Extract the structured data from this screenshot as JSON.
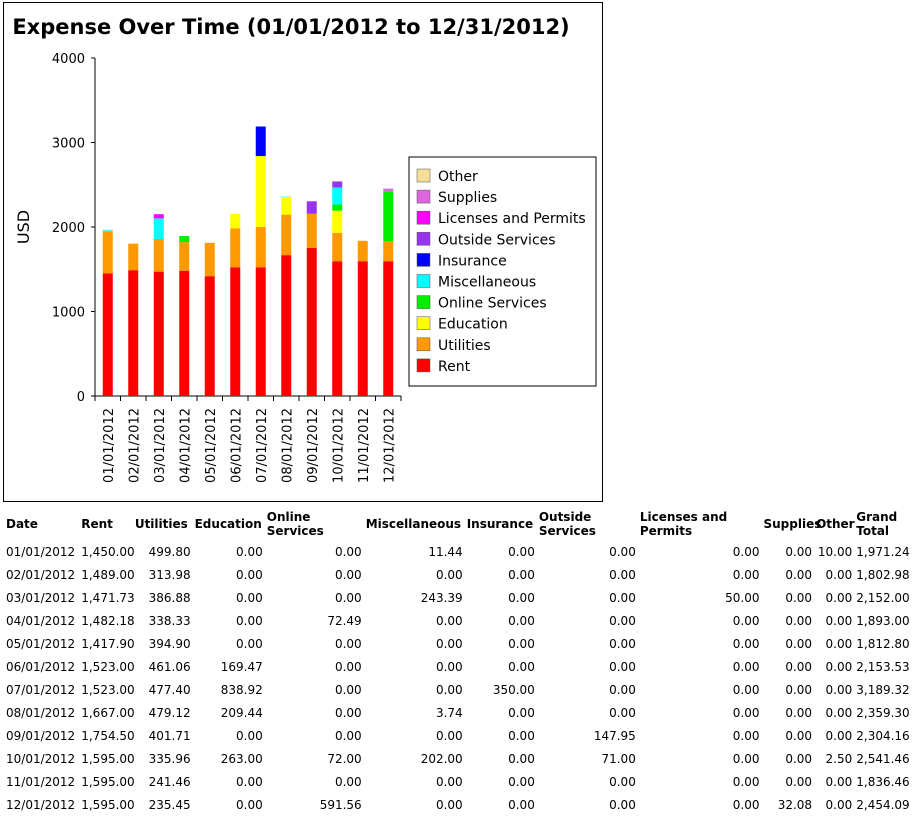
{
  "chart_data": {
    "type": "bar",
    "stacked": true,
    "title": "Expense Over Time (01/01/2012 to 12/31/2012)",
    "ylabel": "USD",
    "xlabel": "",
    "ylim": [
      0,
      4000
    ],
    "yticks": [
      0,
      1000,
      2000,
      3000,
      4000
    ],
    "legend_position": "right",
    "categories": [
      "01/01/2012",
      "02/01/2012",
      "03/01/2012",
      "04/01/2012",
      "05/01/2012",
      "06/01/2012",
      "07/01/2012",
      "08/01/2012",
      "09/01/2012",
      "10/01/2012",
      "11/01/2012",
      "12/01/2012"
    ],
    "series": [
      {
        "name": "Rent",
        "color": "#ff0000",
        "values": [
          1450.0,
          1489.0,
          1471.73,
          1482.18,
          1417.9,
          1523.0,
          1523.0,
          1667.0,
          1754.5,
          1595.0,
          1595.0,
          1595.0
        ]
      },
      {
        "name": "Utilities",
        "color": "#ff9900",
        "values": [
          499.8,
          313.98,
          386.88,
          338.33,
          394.9,
          461.06,
          477.4,
          479.12,
          401.71,
          335.96,
          241.46,
          235.45
        ]
      },
      {
        "name": "Education",
        "color": "#ffff00",
        "values": [
          0,
          0,
          0,
          0,
          0,
          169.47,
          838.92,
          209.44,
          0,
          263.0,
          0,
          0
        ]
      },
      {
        "name": "Online Services",
        "color": "#00ee00",
        "values": [
          0,
          0,
          0,
          72.49,
          0,
          0,
          0,
          0,
          0,
          72.0,
          0,
          591.56
        ]
      },
      {
        "name": "Miscellaneous",
        "color": "#00ffff",
        "values": [
          11.44,
          0,
          243.39,
          0,
          0,
          0,
          0,
          3.74,
          0,
          202.0,
          0,
          0
        ]
      },
      {
        "name": "Insurance",
        "color": "#0000ff",
        "values": [
          0,
          0,
          0,
          0,
          0,
          0,
          350.0,
          0,
          0,
          0,
          0,
          0
        ]
      },
      {
        "name": "Outside Services",
        "color": "#9933ee",
        "values": [
          0,
          0,
          0,
          0,
          0,
          0,
          0,
          0,
          147.95,
          71.0,
          0,
          0
        ]
      },
      {
        "name": "Licenses and Permits",
        "color": "#ff00ff",
        "values": [
          0,
          0,
          50.0,
          0,
          0,
          0,
          0,
          0,
          0,
          0,
          0,
          0
        ]
      },
      {
        "name": "Supplies",
        "color": "#dd66dd",
        "values": [
          0,
          0,
          0,
          0,
          0,
          0,
          0,
          0,
          0,
          0,
          0,
          32.08
        ]
      },
      {
        "name": "Other",
        "color": "#f5df95",
        "values": [
          10.0,
          0,
          0,
          0,
          0,
          0,
          0,
          0,
          0,
          2.5,
          0,
          0
        ]
      }
    ]
  },
  "table": {
    "headers": [
      "Date",
      "Rent",
      "Utilities",
      "Education",
      "Online Services",
      "Miscellaneous",
      "Insurance",
      "Outside Services",
      "Licenses and Permits",
      "Supplies",
      "Other",
      "Grand Total"
    ],
    "rows": [
      [
        "01/01/2012",
        "1,450.00",
        "499.80",
        "0.00",
        "0.00",
        "11.44",
        "0.00",
        "0.00",
        "0.00",
        "0.00",
        "10.00",
        "1,971.24"
      ],
      [
        "02/01/2012",
        "1,489.00",
        "313.98",
        "0.00",
        "0.00",
        "0.00",
        "0.00",
        "0.00",
        "0.00",
        "0.00",
        "0.00",
        "1,802.98"
      ],
      [
        "03/01/2012",
        "1,471.73",
        "386.88",
        "0.00",
        "0.00",
        "243.39",
        "0.00",
        "0.00",
        "50.00",
        "0.00",
        "0.00",
        "2,152.00"
      ],
      [
        "04/01/2012",
        "1,482.18",
        "338.33",
        "0.00",
        "72.49",
        "0.00",
        "0.00",
        "0.00",
        "0.00",
        "0.00",
        "0.00",
        "1,893.00"
      ],
      [
        "05/01/2012",
        "1,417.90",
        "394.90",
        "0.00",
        "0.00",
        "0.00",
        "0.00",
        "0.00",
        "0.00",
        "0.00",
        "0.00",
        "1,812.80"
      ],
      [
        "06/01/2012",
        "1,523.00",
        "461.06",
        "169.47",
        "0.00",
        "0.00",
        "0.00",
        "0.00",
        "0.00",
        "0.00",
        "0.00",
        "2,153.53"
      ],
      [
        "07/01/2012",
        "1,523.00",
        "477.40",
        "838.92",
        "0.00",
        "0.00",
        "350.00",
        "0.00",
        "0.00",
        "0.00",
        "0.00",
        "3,189.32"
      ],
      [
        "08/01/2012",
        "1,667.00",
        "479.12",
        "209.44",
        "0.00",
        "3.74",
        "0.00",
        "0.00",
        "0.00",
        "0.00",
        "0.00",
        "2,359.30"
      ],
      [
        "09/01/2012",
        "1,754.50",
        "401.71",
        "0.00",
        "0.00",
        "0.00",
        "0.00",
        "147.95",
        "0.00",
        "0.00",
        "0.00",
        "2,304.16"
      ],
      [
        "10/01/2012",
        "1,595.00",
        "335.96",
        "263.00",
        "72.00",
        "202.00",
        "0.00",
        "71.00",
        "0.00",
        "0.00",
        "2.50",
        "2,541.46"
      ],
      [
        "11/01/2012",
        "1,595.00",
        "241.46",
        "0.00",
        "0.00",
        "0.00",
        "0.00",
        "0.00",
        "0.00",
        "0.00",
        "0.00",
        "1,836.46"
      ],
      [
        "12/01/2012",
        "1,595.00",
        "235.45",
        "0.00",
        "591.56",
        "0.00",
        "0.00",
        "0.00",
        "0.00",
        "32.08",
        "0.00",
        "2,454.09"
      ]
    ]
  }
}
